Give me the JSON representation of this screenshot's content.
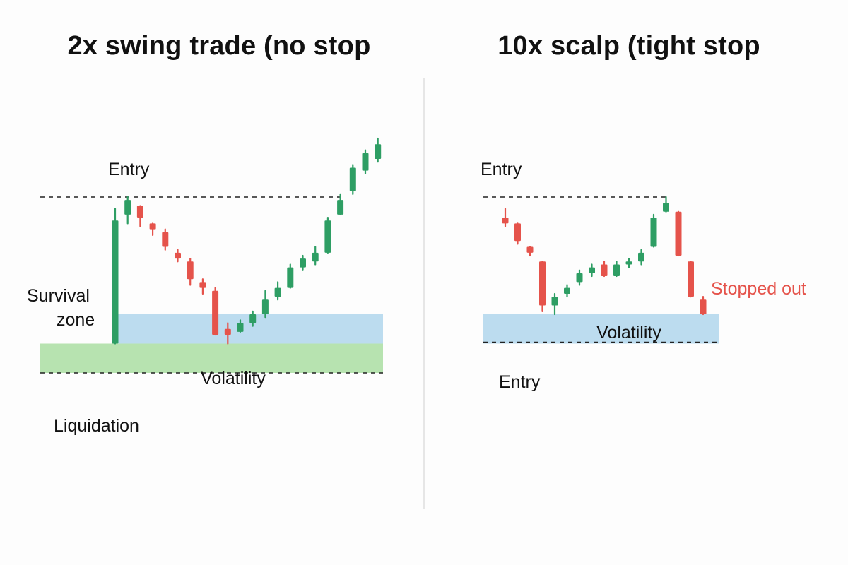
{
  "colors": {
    "up": "#2e9e64",
    "down": "#e5534b",
    "blue_zone": "#bcdcef",
    "green_zone": "#b7e3b0",
    "dashes": "#222222"
  },
  "chart_data": [
    {
      "type": "candlestick",
      "title": "2x swing trade (no stop",
      "annotations": {
        "entry": "Entry",
        "survival_zone_line1": "Survival",
        "survival_zone_line2": "zone",
        "volatility": "Volatility",
        "liquidation": "Liquidation"
      },
      "reference_levels": {
        "entry": 100,
        "survival_top": 60,
        "survival_bottom": 50,
        "liquidation": 40
      },
      "ylim": [
        30,
        120
      ],
      "candles": [
        {
          "open": 50,
          "high": 96,
          "low": 50,
          "close": 92,
          "dir": "up"
        },
        {
          "open": 94,
          "high": 100,
          "low": 91,
          "close": 99,
          "dir": "up"
        },
        {
          "open": 97,
          "high": 97,
          "low": 90,
          "close": 93,
          "dir": "down"
        },
        {
          "open": 91,
          "high": 91,
          "low": 87,
          "close": 89,
          "dir": "down"
        },
        {
          "open": 88,
          "high": 89,
          "low": 82,
          "close": 83,
          "dir": "down"
        },
        {
          "open": 81,
          "high": 82,
          "low": 78,
          "close": 79,
          "dir": "down"
        },
        {
          "open": 78,
          "high": 79,
          "low": 70,
          "close": 72,
          "dir": "down"
        },
        {
          "open": 71,
          "high": 72,
          "low": 67,
          "close": 69,
          "dir": "down"
        },
        {
          "open": 68,
          "high": 69,
          "low": 53,
          "close": 53,
          "dir": "down"
        },
        {
          "open": 55,
          "high": 57,
          "low": 50,
          "close": 53,
          "dir": "down"
        },
        {
          "open": 54,
          "high": 58,
          "low": 54,
          "close": 57,
          "dir": "up"
        },
        {
          "open": 57,
          "high": 61,
          "low": 56,
          "close": 60,
          "dir": "up"
        },
        {
          "open": 60,
          "high": 68,
          "low": 59,
          "close": 65,
          "dir": "up"
        },
        {
          "open": 66,
          "high": 71,
          "low": 65,
          "close": 69,
          "dir": "up"
        },
        {
          "open": 69,
          "high": 77,
          "low": 69,
          "close": 76,
          "dir": "up"
        },
        {
          "open": 76,
          "high": 80,
          "low": 75,
          "close": 79,
          "dir": "up"
        },
        {
          "open": 78,
          "high": 83,
          "low": 77,
          "close": 81,
          "dir": "up"
        },
        {
          "open": 81,
          "high": 93,
          "low": 81,
          "close": 92,
          "dir": "up"
        },
        {
          "open": 94,
          "high": 101,
          "low": 94,
          "close": 99,
          "dir": "up"
        },
        {
          "open": 102,
          "high": 111,
          "low": 101,
          "close": 110,
          "dir": "up"
        },
        {
          "open": 109,
          "high": 116,
          "low": 108,
          "close": 115,
          "dir": "up"
        },
        {
          "open": 113,
          "high": 120,
          "low": 112,
          "close": 118,
          "dir": "up"
        }
      ]
    },
    {
      "type": "candlestick",
      "title": "10x scalp (tight stop",
      "annotations": {
        "entry_top": "Entry",
        "volatility": "Volatility",
        "entry_bottom": "Entry",
        "stopped_out": "Stopped out"
      },
      "reference_levels": {
        "entry": 100,
        "volatility_top": 60,
        "volatility_bottom": 50
      },
      "ylim": [
        30,
        120
      ],
      "candles": [
        {
          "open": 93,
          "high": 96,
          "low": 90,
          "close": 91,
          "dir": "down"
        },
        {
          "open": 91,
          "high": 91,
          "low": 84,
          "close": 85,
          "dir": "down"
        },
        {
          "open": 83,
          "high": 83,
          "low": 80,
          "close": 81,
          "dir": "down"
        },
        {
          "open": 78,
          "high": 78,
          "low": 61,
          "close": 63,
          "dir": "down"
        },
        {
          "open": 63,
          "high": 67,
          "low": 60,
          "close": 66,
          "dir": "up"
        },
        {
          "open": 67,
          "high": 70,
          "low": 66,
          "close": 69,
          "dir": "up"
        },
        {
          "open": 71,
          "high": 75,
          "low": 70,
          "close": 74,
          "dir": "up"
        },
        {
          "open": 74,
          "high": 77,
          "low": 73,
          "close": 76,
          "dir": "up"
        },
        {
          "open": 77,
          "high": 78,
          "low": 73,
          "close": 73,
          "dir": "down"
        },
        {
          "open": 73,
          "high": 78,
          "low": 73,
          "close": 77,
          "dir": "up"
        },
        {
          "open": 77,
          "high": 79,
          "low": 76,
          "close": 78,
          "dir": "up"
        },
        {
          "open": 78,
          "high": 82,
          "low": 77,
          "close": 81,
          "dir": "up"
        },
        {
          "open": 83,
          "high": 94,
          "low": 83,
          "close": 93,
          "dir": "up"
        },
        {
          "open": 95,
          "high": 100,
          "low": 95,
          "close": 98,
          "dir": "up"
        },
        {
          "open": 95,
          "high": 95,
          "low": 80,
          "close": 80,
          "dir": "down"
        },
        {
          "open": 78,
          "high": 78,
          "low": 66,
          "close": 66,
          "dir": "down"
        },
        {
          "open": 65,
          "high": 66,
          "low": 60,
          "close": 60,
          "dir": "down"
        }
      ]
    }
  ]
}
